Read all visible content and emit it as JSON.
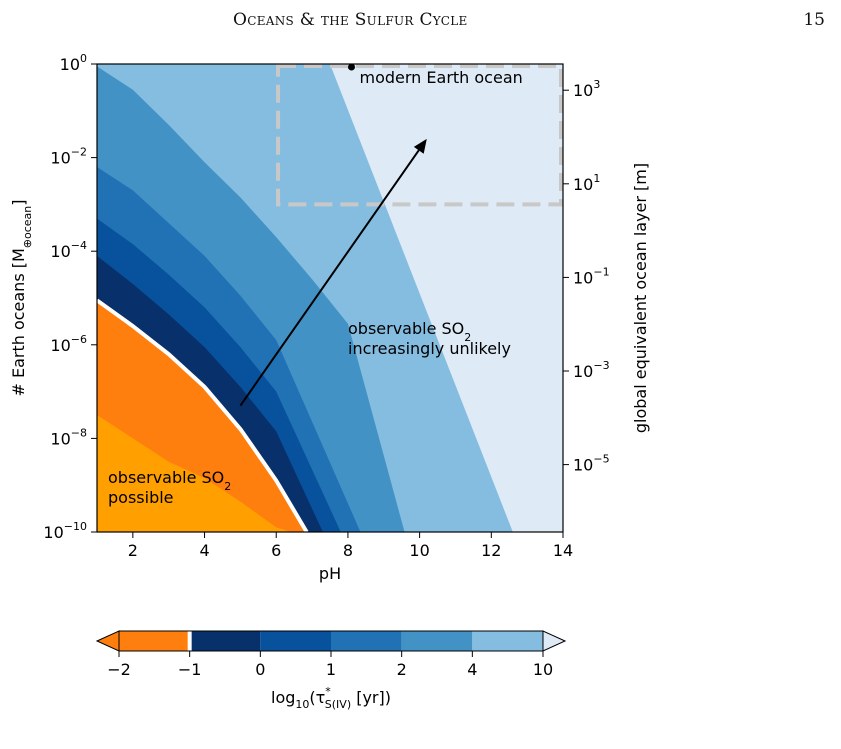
{
  "page": {
    "running_head": "Oceans & the Sulfur Cycle",
    "page_number": "15"
  },
  "chart_data": {
    "type": "contour",
    "xlabel": "pH",
    "ylabel": "# Earth oceans [M",
    "ylabel_sub": "⊕ocean",
    "ylabel_end": "]",
    "y2label": "global equivalent ocean layer [m]",
    "xlim": [
      1,
      14
    ],
    "ylim_log10": [
      -10,
      0
    ],
    "y2lim_log10": [
      -6.44,
      3.56
    ],
    "xticks": [
      2,
      4,
      6,
      8,
      10,
      12,
      14
    ],
    "yticks_log10": [
      0,
      -2,
      -4,
      -6,
      -8,
      -10
    ],
    "y2ticks_log10": [
      3,
      1,
      -1,
      -3,
      -5
    ],
    "levels": [
      -2,
      -1,
      0,
      1,
      2,
      4,
      10
    ],
    "bands": [
      {
        "range": [
          -2,
          -1
        ],
        "color": "#ff7f0e"
      },
      {
        "range": [
          -1,
          0
        ],
        "color": "#08306b"
      },
      {
        "range": [
          0,
          1
        ],
        "color": "#08519c"
      },
      {
        "range": [
          1,
          2
        ],
        "color": "#2171b5"
      },
      {
        "range": [
          2,
          4
        ],
        "color": "#4292c6"
      },
      {
        "range": [
          4,
          10
        ],
        "color": "#85bde1"
      }
    ],
    "extend_low_color": "#ffa000",
    "extend_high_color": "#deebf7",
    "boundaries": [
      {
        "level": -1,
        "points": [
          [
            1,
            -7.5
          ],
          [
            2,
            -8.0
          ],
          [
            3,
            -8.5
          ],
          [
            4,
            -8.85
          ],
          [
            5,
            -9.35
          ],
          [
            6,
            -9.9
          ],
          [
            6.42,
            -10
          ]
        ]
      },
      {
        "level": -1.001,
        "points": [
          [
            1,
            -5.05
          ],
          [
            2,
            -5.6
          ],
          [
            3,
            -6.2
          ],
          [
            4,
            -6.9
          ],
          [
            5,
            -7.8
          ],
          [
            6,
            -8.9
          ],
          [
            6.85,
            -10
          ]
        ]
      },
      {
        "level": 0,
        "points": [
          [
            1,
            -4.1
          ],
          [
            2,
            -4.7
          ],
          [
            3,
            -5.35
          ],
          [
            4,
            -6.05
          ],
          [
            5,
            -6.9
          ],
          [
            6,
            -7.85
          ],
          [
            7.3,
            -10
          ]
        ]
      },
      {
        "level": 1,
        "points": [
          [
            1,
            -3.3
          ],
          [
            2,
            -3.85
          ],
          [
            3,
            -4.5
          ],
          [
            4,
            -5.2
          ],
          [
            5,
            -6.05
          ],
          [
            6,
            -7.0
          ],
          [
            7.8,
            -10
          ]
        ]
      },
      {
        "level": 2,
        "points": [
          [
            1,
            -2.2
          ],
          [
            2,
            -2.7
          ],
          [
            3,
            -3.4
          ],
          [
            4,
            -4.1
          ],
          [
            5,
            -4.95
          ],
          [
            6,
            -5.9
          ],
          [
            8.35,
            -10
          ]
        ]
      },
      {
        "level": 4,
        "points": [
          [
            1,
            -0.05
          ],
          [
            2,
            -0.55
          ],
          [
            3,
            -1.3
          ],
          [
            4,
            -2.1
          ],
          [
            5,
            -2.85
          ],
          [
            6,
            -3.7
          ],
          [
            7,
            -4.6
          ],
          [
            8,
            -5.55
          ],
          [
            9.58,
            -10
          ]
        ]
      },
      {
        "level": 10,
        "points": [
          [
            7.5,
            0
          ],
          [
            12.6,
            -10
          ]
        ]
      }
    ],
    "white_contour_level": -1,
    "modern_earth": {
      "x": 8.1,
      "y_log10": 0,
      "label": "modern Earth ocean"
    },
    "modern_box": {
      "x": [
        6.05,
        14
      ],
      "y_log10": [
        -3.0,
        0
      ]
    },
    "arrow": {
      "from": [
        5.0,
        -7.3
      ],
      "to": [
        10.2,
        -1.6
      ]
    },
    "annotations": {
      "unlikely_line1": "observable SO",
      "unlikely_line2": " increasingly unlikely",
      "possible_line1": "observable SO",
      "possible_line2": "possible",
      "sub2": "2"
    },
    "colorbar": {
      "tick_labels": [
        "−2",
        "−1",
        "0",
        "1",
        "2",
        "4",
        "10"
      ],
      "label": "log",
      "label_sub": "10",
      "label_tau": "(τ",
      "label_sup": "*",
      "label_sub2": "S(IV)",
      "label_end": " [yr])"
    }
  }
}
